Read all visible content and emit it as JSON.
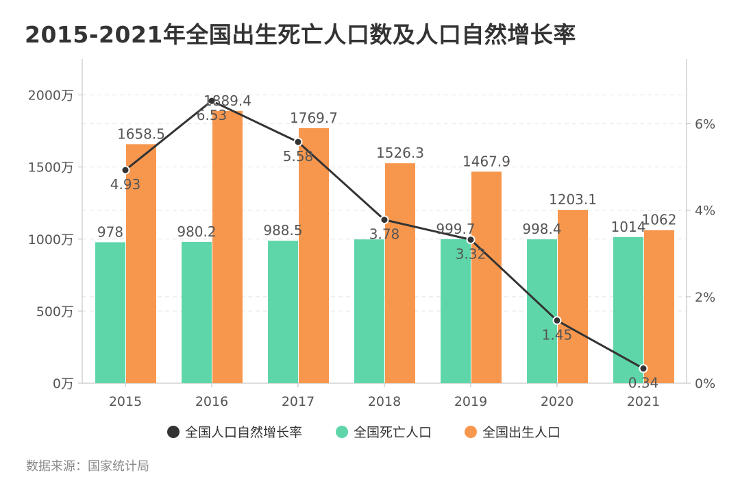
{
  "title": "2015-2021年全国出生死亡人口数及人口自然增长率",
  "source": "数据来源：国家统计局",
  "chart_data": {
    "type": "bar",
    "categories": [
      "2015",
      "2016",
      "2017",
      "2018",
      "2019",
      "2020",
      "2021"
    ],
    "series": [
      {
        "name": "全国死亡人口",
        "type": "bar",
        "axis": "left",
        "color": "#5fd6a9",
        "values": [
          978,
          980.2,
          988.5,
          998,
          999.7,
          998.4,
          1014
        ],
        "labels": [
          "978",
          "980.2",
          "988.5",
          "",
          "999.7",
          "998.4",
          "1014"
        ]
      },
      {
        "name": "全国出生人口",
        "type": "bar",
        "axis": "left",
        "color": "#f7974e",
        "values": [
          1658.5,
          1889.4,
          1769.7,
          1526.3,
          1467.9,
          1203.1,
          1062
        ],
        "labels": [
          "1658.5",
          "1889.4",
          "1769.7",
          "1526.3",
          "1467.9",
          "1203.1",
          "1062"
        ]
      },
      {
        "name": "全国人口自然增长率",
        "type": "line",
        "axis": "right",
        "color": "#333333",
        "values": [
          4.93,
          6.53,
          5.58,
          3.78,
          3.32,
          1.45,
          0.34
        ],
        "labels": [
          "4.93",
          "6.53",
          "5.58",
          "3.78",
          "3.32",
          "1.45",
          "0.34"
        ]
      }
    ],
    "y_left": {
      "ticks": [
        "0万",
        "500万",
        "1000万",
        "1500万",
        "2000万"
      ],
      "range": [
        0,
        2250
      ]
    },
    "y_right": {
      "ticks": [
        "0%",
        "2%",
        "4%",
        "6%"
      ],
      "range": [
        0,
        7.5
      ]
    },
    "legend": {
      "placement": "bottom",
      "order": [
        "全国人口自然增长率",
        "全国死亡人口",
        "全国出生人口"
      ]
    },
    "grid": "dashed horizontal"
  }
}
